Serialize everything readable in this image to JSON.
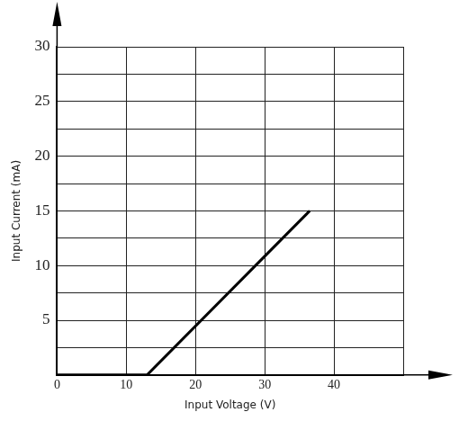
{
  "chart_data": {
    "type": "line",
    "x_label": "Input Voltage (V)",
    "y_label": "Input Current (mA)",
    "x": [
      0,
      13,
      36.5
    ],
    "values": [
      0,
      0,
      15
    ],
    "color": "#000000",
    "xlim": [
      0,
      50
    ],
    "xticks": [
      0,
      10,
      20,
      30,
      40
    ],
    "ylim": [
      0,
      30
    ],
    "yticks": [
      5,
      10,
      15,
      20,
      25,
      30
    ],
    "grid": true
  }
}
